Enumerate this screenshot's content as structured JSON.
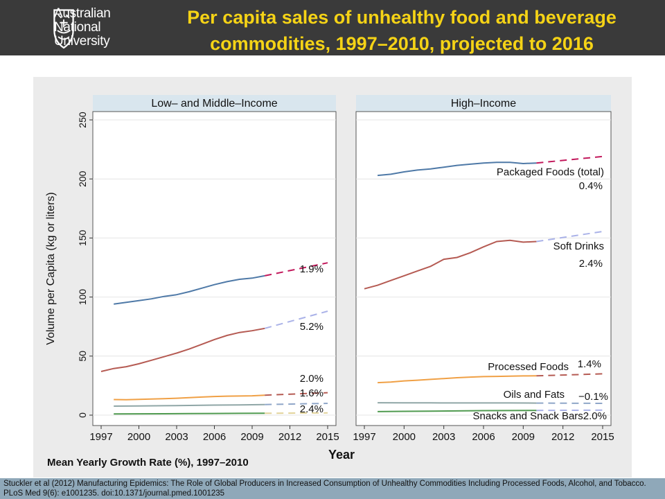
{
  "header": {
    "logo_line1": "Australian",
    "logo_line2": "National",
    "logo_line3": "University",
    "title_line1": "Per capita sales of unhealthy food and beverage",
    "title_line2": "commodities, 1997–2010, projected to 2016",
    "title_color": "#f5d316",
    "background": "#3a3a3a"
  },
  "citation": "Stuckler et al (2012) Manufacturing Epidemics: The Role of Global Producers in Increased Consumption of Unhealthy Commodities Including Processed Foods, Alcohol, and Tobacco. PLoS Med 9(6): e1001235. doi:10.1371/journal.pmed.1001235",
  "chart_data": {
    "type": "line",
    "ylabel": "Volume per Capita (kg or liters)",
    "xlabel": "Year",
    "ylim": [
      0,
      250
    ],
    "yticks": [
      0,
      50,
      100,
      150,
      200,
      250
    ],
    "xlim": [
      1997,
      2015
    ],
    "xticks": [
      1997,
      2000,
      2003,
      2006,
      2009,
      2012,
      2015
    ],
    "footnote": "Mean Yearly Growth Rate (%), 1997–2010",
    "panels": [
      {
        "title": "Low– and Middle–Income",
        "series": [
          {
            "color": "#4e79a7",
            "proj_color": "#c2185b",
            "rate": "1.9%",
            "x": [
              1998,
              1999,
              2000,
              2001,
              2002,
              2003,
              2004,
              2005,
              2006,
              2007,
              2008,
              2009,
              2010
            ],
            "y": [
              94,
              95.5,
              97,
              98.5,
              100.5,
              102,
              104.5,
              107.5,
              110.5,
              113,
              115,
              116,
              118
            ],
            "proj_x": [
              2010,
              2015
            ],
            "proj_y": [
              118,
              129
            ]
          },
          {
            "color": "#b55a52",
            "proj_color": "#aab2e8",
            "rate": "5.2%",
            "x": [
              1997,
              1998,
              1999,
              2000,
              2001,
              2002,
              2003,
              2004,
              2005,
              2006,
              2007,
              2008,
              2009,
              2010
            ],
            "y": [
              37,
              39.5,
              41,
              43.5,
              46.5,
              49.5,
              52.5,
              56,
              60,
              64,
              67.5,
              70,
              71.5,
              73.5
            ],
            "proj_x": [
              2010,
              2015
            ],
            "proj_y": [
              73.5,
              88
            ]
          },
          {
            "color": "#f0a045",
            "proj_color": "#b55a52",
            "rate": "2.0%",
            "x": [
              1998,
              1999,
              2000,
              2001,
              2002,
              2003,
              2004,
              2005,
              2006,
              2007,
              2008,
              2009,
              2010
            ],
            "y": [
              13.2,
              13.1,
              13.3,
              13.6,
              13.9,
              14.3,
              14.8,
              15.3,
              15.8,
              16.1,
              16.2,
              16.4,
              16.9
            ],
            "proj_x": [
              2010,
              2015
            ],
            "proj_y": [
              16.9,
              19
            ]
          },
          {
            "color": "#8fa6a6",
            "proj_color": "#8fa6c8",
            "rate": "1.6%",
            "x": [
              1998,
              2000,
              2002,
              2004,
              2006,
              2008,
              2010
            ],
            "y": [
              7.6,
              7.8,
              8,
              8.2,
              8.5,
              8.6,
              9
            ],
            "proj_x": [
              2010,
              2015
            ],
            "proj_y": [
              9,
              10
            ]
          },
          {
            "color": "#4f9a4f",
            "proj_color": "#e2d39a",
            "rate": "2.4%",
            "x": [
              1998,
              2000,
              2002,
              2004,
              2006,
              2008,
              2010
            ],
            "y": [
              1,
              1.1,
              1.2,
              1.3,
              1.4,
              1.5,
              1.6
            ],
            "proj_x": [
              2010,
              2015
            ],
            "proj_y": [
              1.6,
              1.9
            ]
          }
        ]
      },
      {
        "title": "High–Income",
        "series": [
          {
            "color": "#4e79a7",
            "proj_color": "#c2185b",
            "label": "Packaged Foods (total)",
            "rate": "0.4%",
            "x": [
              1998,
              1999,
              2000,
              2001,
              2002,
              2003,
              2004,
              2005,
              2006,
              2007,
              2008,
              2009,
              2010
            ],
            "y": [
              203,
              204,
              206,
              207.5,
              208.5,
              210,
              211.5,
              212.5,
              213.5,
              214,
              214,
              213,
              213.5
            ],
            "proj_x": [
              2010,
              2015
            ],
            "proj_y": [
              213.5,
              219
            ]
          },
          {
            "color": "#b55a52",
            "proj_color": "#aab2e8",
            "label": "Soft Drinks",
            "rate": "2.4%",
            "x": [
              1997,
              1998,
              1999,
              2000,
              2001,
              2002,
              2003,
              2004,
              2005,
              2006,
              2007,
              2008,
              2009,
              2010
            ],
            "y": [
              107,
              110,
              114,
              118,
              122,
              126,
              132,
              133.5,
              137.5,
              142.5,
              147,
              148,
              146.5,
              147
            ],
            "proj_x": [
              2010,
              2015
            ],
            "proj_y": [
              147,
              155.5
            ]
          },
          {
            "color": "#f0a045",
            "proj_color": "#b55a52",
            "label": "Processed Foods",
            "rate": "1.4%",
            "x": [
              1998,
              1999,
              2000,
              2001,
              2002,
              2003,
              2004,
              2005,
              2006,
              2007,
              2008,
              2009,
              2010
            ],
            "y": [
              27.5,
              28,
              29,
              29.6,
              30.3,
              31,
              31.7,
              32.2,
              32.6,
              32.8,
              33,
              33.2,
              33.3
            ],
            "proj_x": [
              2010,
              2015
            ],
            "proj_y": [
              33.3,
              35
            ]
          },
          {
            "color": "#8fa6a6",
            "proj_color": "#8fa6c8",
            "label": "Oils and Fats",
            "rate": "−0.1%",
            "x": [
              1998,
              2000,
              2002,
              2004,
              2006,
              2008,
              2010
            ],
            "y": [
              10.5,
              10.4,
              10.4,
              10.3,
              10.3,
              10.3,
              10.2
            ],
            "proj_x": [
              2010,
              2015
            ],
            "proj_y": [
              10.2,
              10
            ]
          },
          {
            "color": "#4f9a4f",
            "proj_color": "#aab2e8",
            "label": "Snacks and Snack Bars",
            "rate": "2.0%",
            "x": [
              1998,
              2000,
              2002,
              2004,
              2006,
              2008,
              2010
            ],
            "y": [
              3,
              3.2,
              3.4,
              3.6,
              3.8,
              3.9,
              4
            ],
            "proj_x": [
              2010,
              2015
            ],
            "proj_y": [
              4,
              4.2
            ]
          }
        ]
      }
    ]
  }
}
